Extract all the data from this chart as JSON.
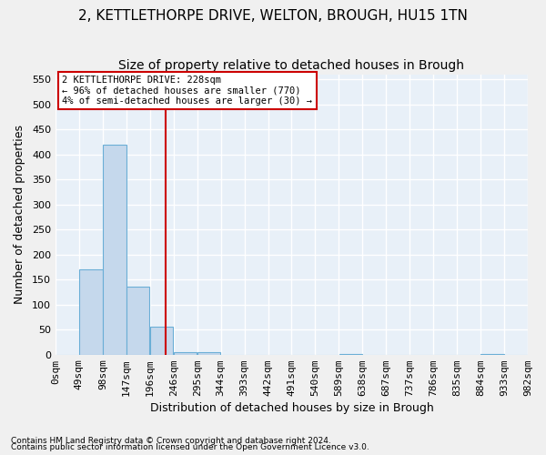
{
  "title": "2, KETTLETHORPE DRIVE, WELTON, BROUGH, HU15 1TN",
  "subtitle": "Size of property relative to detached houses in Brough",
  "xlabel": "Distribution of detached houses by size in Brough",
  "ylabel": "Number of detached properties",
  "bar_color": "#c5d8ec",
  "bar_edge_color": "#6aaed6",
  "background_color": "#e8f0f8",
  "grid_color": "#ffffff",
  "bin_labels": [
    "0sqm",
    "49sqm",
    "98sqm",
    "147sqm",
    "196sqm",
    "246sqm",
    "295sqm",
    "344sqm",
    "393sqm",
    "442sqm",
    "491sqm",
    "540sqm",
    "589sqm",
    "638sqm",
    "687sqm",
    "737sqm",
    "786sqm",
    "835sqm",
    "884sqm",
    "933sqm",
    "982sqm"
  ],
  "bar_values": [
    0,
    170,
    420,
    135,
    55,
    5,
    5,
    0,
    0,
    0,
    0,
    0,
    2,
    0,
    0,
    0,
    0,
    0,
    2,
    0
  ],
  "bin_width": 49,
  "bin_starts": [
    0,
    49,
    98,
    147,
    196,
    245,
    294,
    343,
    392,
    441,
    490,
    539,
    588,
    637,
    686,
    735,
    784,
    833,
    882,
    931
  ],
  "property_size": 228,
  "vline_color": "#cc0000",
  "annotation_text": "2 KETTLETHORPE DRIVE: 228sqm\n← 96% of detached houses are smaller (770)\n4% of semi-detached houses are larger (30) →",
  "annotation_box_color": "#cc0000",
  "annotation_bg": "#ffffff",
  "ylim": [
    0,
    560
  ],
  "yticks": [
    0,
    50,
    100,
    150,
    200,
    250,
    300,
    350,
    400,
    450,
    500,
    550
  ],
  "footnote1": "Contains HM Land Registry data © Crown copyright and database right 2024.",
  "footnote2": "Contains public sector information licensed under the Open Government Licence v3.0.",
  "title_fontsize": 11,
  "subtitle_fontsize": 10,
  "axis_fontsize": 9,
  "tick_fontsize": 8,
  "fig_bg_color": "#f0f0f0"
}
